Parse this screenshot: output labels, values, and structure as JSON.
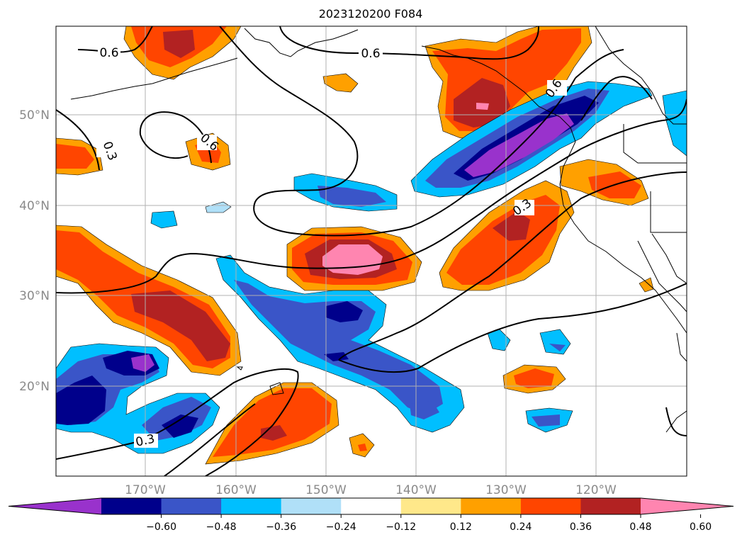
{
  "map": {
    "title": "2023120200 F084",
    "lat_labels": [
      "50°N",
      "40°N",
      "30°N",
      "20°N"
    ],
    "lon_labels": [
      "170°W",
      "160°W",
      "150°W",
      "140°W",
      "130°W",
      "120°W"
    ],
    "contour_labels": [
      "0.6",
      "0.6",
      "0.6",
      "0.6",
      "0.3",
      "0.3",
      "0.3"
    ]
  },
  "colorbar": {
    "ticks": [
      "−0.60",
      "−0.48",
      "−0.36",
      "−0.24",
      "−0.12",
      "0.12",
      "0.24",
      "0.36",
      "0.48",
      "0.60"
    ],
    "colors": [
      "#9932cc",
      "#00008b",
      "#3a55c8",
      "#00bfff",
      "#b0e0f8",
      "#ffffff",
      "#ffe88a",
      "#ffa000",
      "#ff4500",
      "#b22222",
      "#ff85b0"
    ]
  }
}
